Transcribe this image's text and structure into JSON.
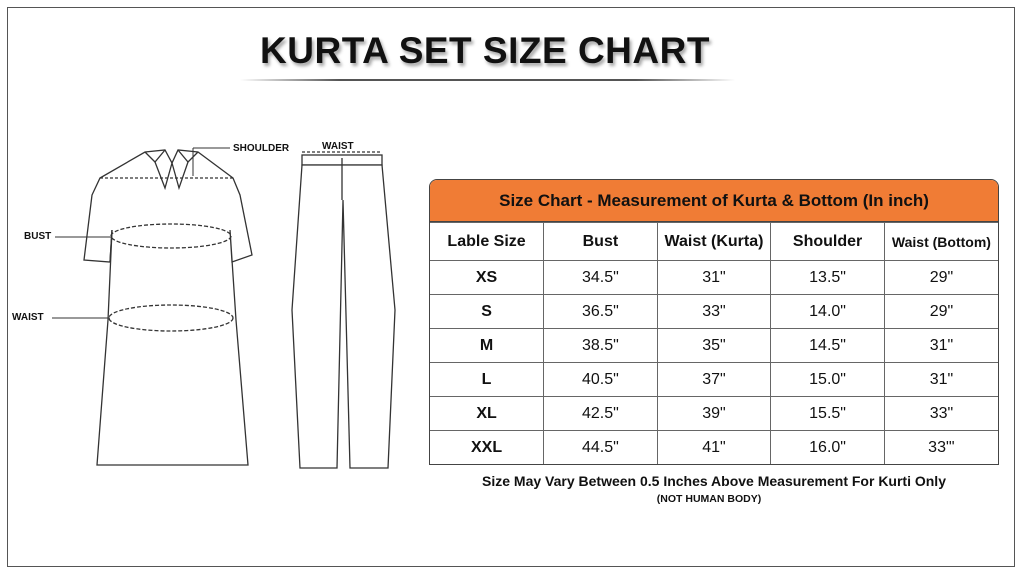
{
  "title": "KURTA SET SIZE CHART",
  "diagram_labels": {
    "shoulder": "SHOULDER",
    "bust": "BUST",
    "waist_kurta": "WAIST",
    "waist_bottom": "WAIST"
  },
  "table": {
    "caption": "Size Chart - Measurement of  Kurta & Bottom  (In inch)",
    "header_color": "#f07c35",
    "columns": [
      "Lable Size",
      "Bust",
      "Waist (Kurta)",
      "Shoulder",
      "Waist (Bottom)"
    ],
    "rows": [
      [
        "XS",
        "34.5\"",
        "31\"",
        "13.5\"",
        "29\""
      ],
      [
        "S",
        "36.5\"",
        "33\"",
        "14.0\"",
        "29\""
      ],
      [
        "M",
        "38.5\"",
        "35\"",
        "14.5\"",
        "31\""
      ],
      [
        "L",
        "40.5\"",
        "37\"",
        "15.0\"",
        "31\""
      ],
      [
        "XL",
        "42.5\"",
        "39\"",
        "15.5\"",
        "33\""
      ],
      [
        "XXL",
        "44.5\"",
        "41\"",
        "16.0\"",
        "33\"'"
      ]
    ]
  },
  "note": "Size May Vary Between 0.5 Inches Above Measurement For Kurti Only",
  "note_sub": "(NOT HUMAN BODY)"
}
